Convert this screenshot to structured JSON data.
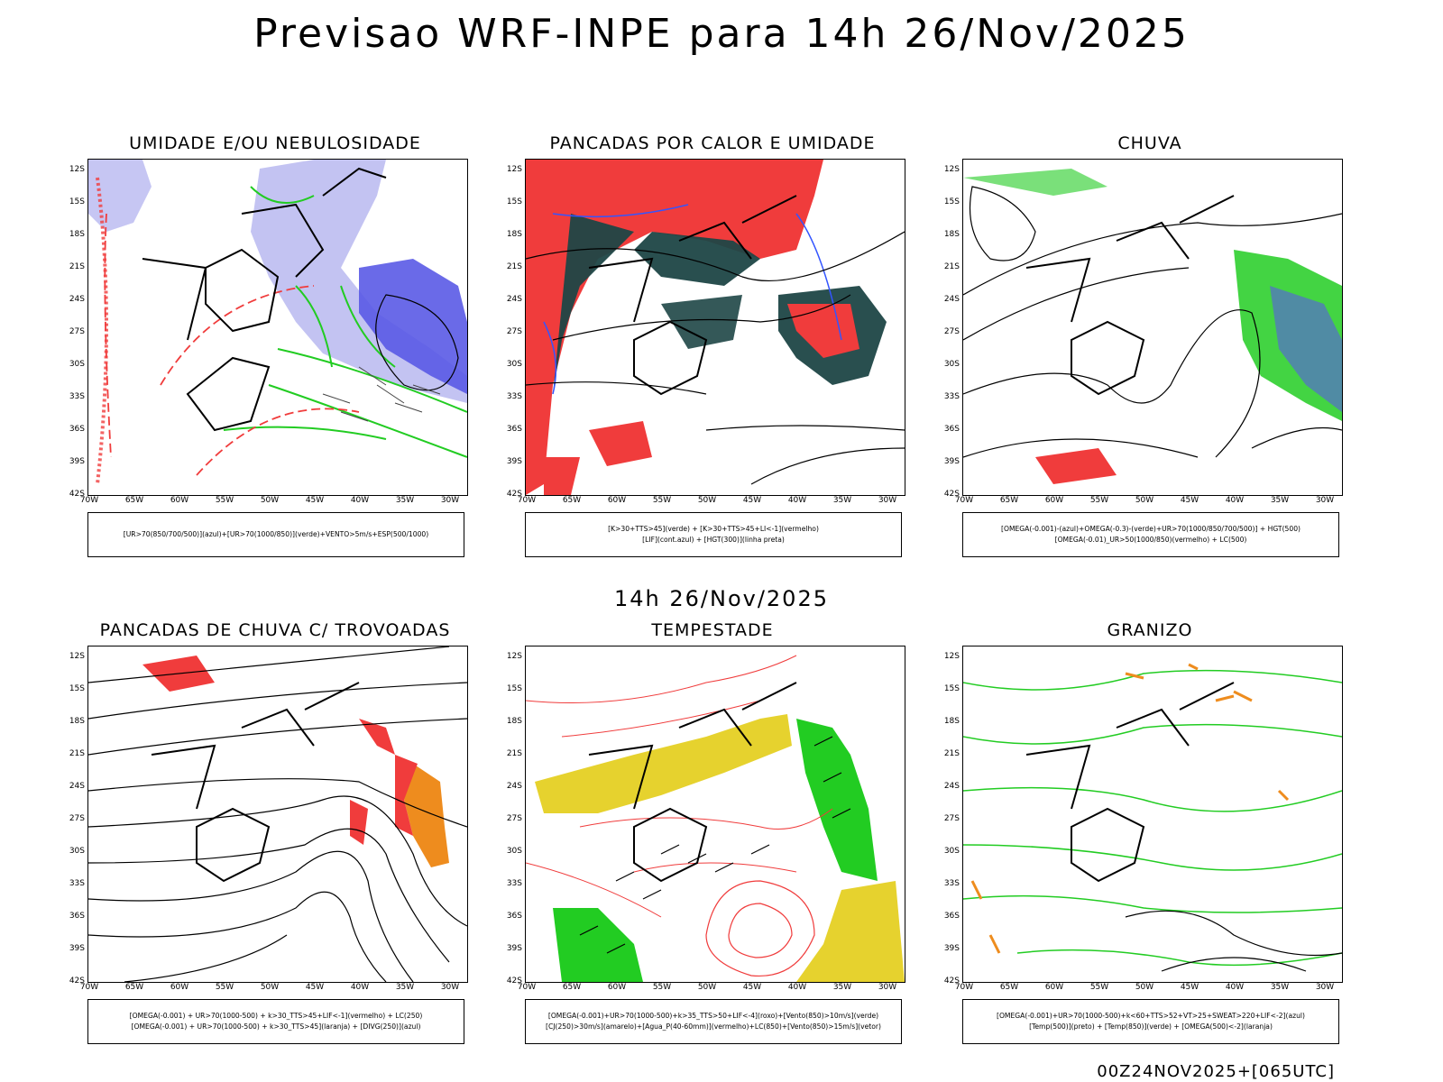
{
  "title": "Previsao WRF-INPE  para 14h 26/Nov/2025",
  "subtitle": "14h 26/Nov/2025",
  "run": "00Z24NOV2025+[065UTC]",
  "lat_ticks": [
    "12S",
    "15S",
    "18S",
    "21S",
    "24S",
    "27S",
    "30S",
    "33S",
    "36S",
    "39S",
    "42S"
  ],
  "lon_ticks": [
    "70W",
    "65W",
    "60W",
    "55W",
    "50W",
    "45W",
    "40W",
    "35W",
    "30W"
  ],
  "colors": {
    "blue": "#5a5ae6",
    "light_blue": "#b8b8f0",
    "green": "#22cc22",
    "red": "#f03c3c",
    "dark_teal": "#1e4646",
    "yellow": "#e6d22e",
    "orange": "#ee8c1e"
  },
  "panels": [
    {
      "title": "UMIDADE E/OU NEBULOSIDADE",
      "legend": [
        "[UR>70(850/700/500)](azul)+[UR>70(1000/850)](verde)+VENTO>5m/s+ESP(500/1000)"
      ]
    },
    {
      "title": "PANCADAS POR CALOR E UMIDADE",
      "legend": [
        "[K>30+TTS>45](verde) + [K>30+TTS>45+LI<-1](vermelho)",
        "[LIF](cont.azul) + [HGT(300)](linha preta)"
      ]
    },
    {
      "title": "CHUVA",
      "legend": [
        "[OMEGA(-0.001)-(azul)+OMEGA(-0.3)-(verde)+UR>70(1000/850/700/500)] + HGT(500)",
        "[OMEGA(-0.01)_UR>50(1000/850)(vermelho) + LC(500)"
      ]
    },
    {
      "title": "PANCADAS DE CHUVA C/ TROVOADAS",
      "legend": [
        "[OMEGA(-0.001) + UR>70(1000-500) + k>30_TTS>45+LIF<-1](vermelho) + LC(250)",
        "[OMEGA(-0.001) + UR>70(1000-500) + k>30_TTS>45](laranja) + [DIVG(250)](azul)"
      ]
    },
    {
      "title": "TEMPESTADE",
      "legend": [
        "[OMEGA(-0.001)+UR>70(1000-500)+k>35_TTS>50+LIF<-4](roxo)+[Vento(850)>10m/s](verde)",
        "[CJ(250)>30m/s](amarelo)+[Agua_P(40-60mm)](vermelho)+LC(850)+[Vento(850)>15m/s](vetor)"
      ]
    },
    {
      "title": "GRANIZO",
      "legend": [
        "[OMEGA(-0.001)+UR>70(1000-500)+k<60+TTS>52+VT>25+SWEAT>220+LIF<-2](azul)",
        "[Temp(500)](preto) + [Temp(850)](verde) + [OMEGA(500)<-2](laranja)"
      ]
    }
  ]
}
